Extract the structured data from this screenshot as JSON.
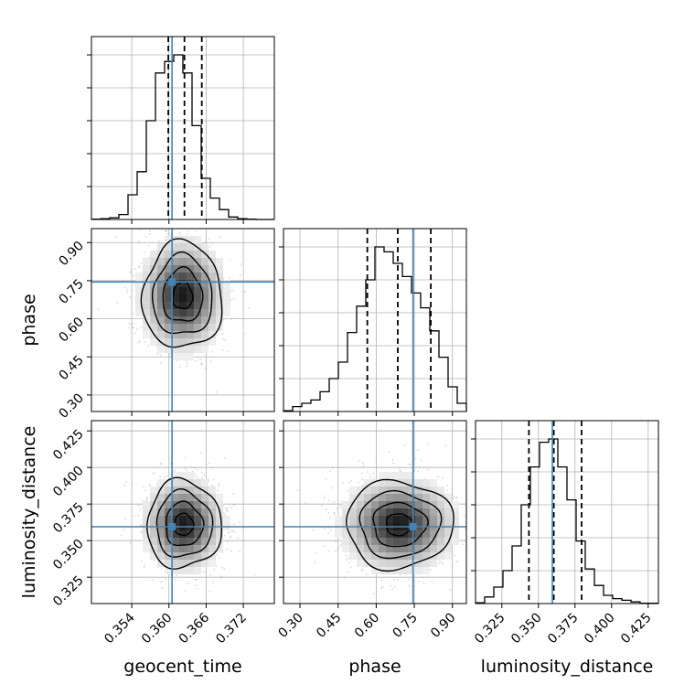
{
  "chart_data": {
    "type": "corner",
    "parameters": [
      {
        "name": "geocent_time",
        "range": [
          0.3475,
          0.377
        ],
        "ticks": [
          0.354,
          0.36,
          0.366,
          0.372
        ],
        "tick_labels": [
          "0.354",
          "0.360",
          "0.366",
          "0.372"
        ],
        "truth": 0.3605,
        "quantiles": [
          0.3599,
          0.3625,
          0.3653
        ]
      },
      {
        "name": "phase",
        "range": [
          0.235,
          0.955
        ],
        "ticks": [
          0.3,
          0.45,
          0.6,
          0.75,
          0.9
        ],
        "tick_labels": [
          "0.30",
          "0.45",
          "0.60",
          "0.75",
          "0.90"
        ],
        "truth": 0.745,
        "quantiles": [
          0.565,
          0.685,
          0.815
        ]
      },
      {
        "name": "luminosity_distance",
        "range": [
          0.307,
          0.432
        ],
        "ticks": [
          0.325,
          0.35,
          0.375,
          0.4,
          0.425
        ],
        "tick_labels": [
          "0.325",
          "0.350",
          "0.375",
          "0.400",
          "0.425"
        ],
        "truth": 0.3595,
        "quantiles": [
          0.3435,
          0.3605,
          0.3795
        ]
      }
    ],
    "histograms": [
      {
        "parameter": "geocent_time",
        "edges_range": [
          0.3475,
          0.377
        ],
        "counts": [
          0.2,
          0.5,
          1,
          3,
          15,
          29,
          60,
          89,
          96,
          100,
          89,
          57,
          25,
          13,
          6,
          1.5,
          0.5,
          0.2,
          0,
          0
        ]
      },
      {
        "parameter": "phase",
        "edges_range": [
          0.235,
          0.955
        ],
        "counts": [
          0.5,
          3,
          5,
          7,
          12,
          20,
          30,
          48,
          64,
          80,
          100,
          97,
          90,
          82,
          72,
          63,
          49,
          33,
          15,
          5
        ]
      },
      {
        "parameter": "luminosity_distance",
        "edges_range": [
          0.307,
          0.432
        ],
        "counts": [
          0.5,
          4,
          10,
          20,
          35,
          60,
          83,
          98,
          100,
          83,
          63,
          38,
          21,
          11,
          5,
          3,
          2,
          1,
          0.2,
          0.2
        ]
      }
    ],
    "pairs": [
      {
        "x": "geocent_time",
        "y": "phase",
        "center": [
          0.3622,
          0.69
        ],
        "sigma": [
          0.0032,
          0.105
        ]
      },
      {
        "x": "geocent_time",
        "y": "luminosity_distance",
        "center": [
          0.3624,
          0.361
        ],
        "sigma": [
          0.003,
          0.015
        ]
      },
      {
        "x": "phase",
        "y": "luminosity_distance",
        "center": [
          0.69,
          0.361
        ],
        "sigma": [
          0.105,
          0.015
        ]
      }
    ],
    "grid": true,
    "truth_color": "#4682b4",
    "line_color": "#000000",
    "scatter_color": "#b5b5b5"
  }
}
